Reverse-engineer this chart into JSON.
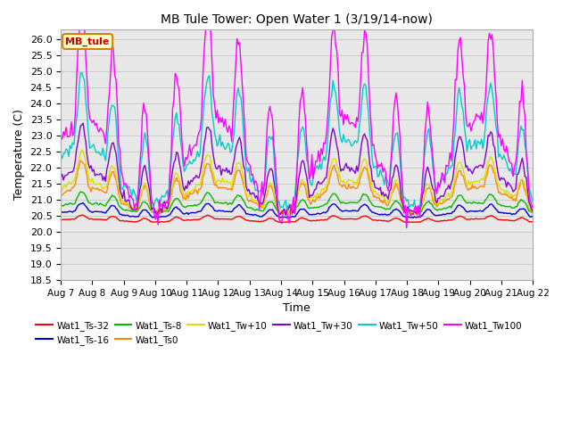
{
  "title": "MB Tule Tower: Open Water 1 (3/19/14-now)",
  "xlabel": "Time",
  "ylabel": "Temperature (C)",
  "ylim": [
    18.5,
    26.3
  ],
  "yticks": [
    18.5,
    19.0,
    19.5,
    20.0,
    20.5,
    21.0,
    21.5,
    22.0,
    22.5,
    23.0,
    23.5,
    24.0,
    24.5,
    25.0,
    25.5,
    26.0
  ],
  "x_labels": [
    "Aug 7",
    "Aug 8",
    "Aug 9",
    "Aug 10",
    "Aug 11",
    "Aug 12",
    "Aug 13",
    "Aug 14",
    "Aug 15",
    "Aug 16",
    "Aug 17",
    "Aug 18",
    "Aug 19",
    "Aug 20",
    "Aug 21",
    "Aug 22"
  ],
  "series_order": [
    "Wat1_Ts-32",
    "Wat1_Ts-16",
    "Wat1_Ts-8",
    "Wat1_Ts0",
    "Wat1_Tw+10",
    "Wat1_Tw+30",
    "Wat1_Tw+50",
    "Wat1_Tw100"
  ],
  "series": {
    "Wat1_Ts-32": {
      "color": "#ff0000",
      "lw": 1.0,
      "base": 20.35,
      "amp": 0.12,
      "amp2": 0.05
    },
    "Wat1_Ts-16": {
      "color": "#0000cc",
      "lw": 1.0,
      "base": 20.55,
      "amp": 0.25,
      "amp2": 0.1
    },
    "Wat1_Ts-8": {
      "color": "#00bb00",
      "lw": 1.0,
      "base": 20.75,
      "amp": 0.35,
      "amp2": 0.15
    },
    "Wat1_Ts0": {
      "color": "#ff8800",
      "lw": 1.0,
      "base": 21.0,
      "amp": 0.8,
      "amp2": 0.4
    },
    "Wat1_Tw+10": {
      "color": "#dddd00",
      "lw": 1.0,
      "base": 21.1,
      "amp": 0.9,
      "amp2": 0.5
    },
    "Wat1_Tw+30": {
      "color": "#8800cc",
      "lw": 1.0,
      "base": 21.3,
      "amp": 1.4,
      "amp2": 0.7
    },
    "Wat1_Tw+50": {
      "color": "#00cccc",
      "lw": 1.0,
      "base": 21.8,
      "amp": 2.2,
      "amp2": 1.0
    },
    "Wat1_Tw100": {
      "color": "#ff00ff",
      "lw": 1.0,
      "base": 22.0,
      "amp": 3.5,
      "amp2": 1.5
    }
  },
  "legend_label": "MB_tule",
  "legend_color": "#cc0000",
  "legend_bg": "#ffffcc",
  "legend_border": "#cc8800",
  "background_color": "#ffffff",
  "plot_bg": "#e8e8e8",
  "grid_color": "#cccccc"
}
